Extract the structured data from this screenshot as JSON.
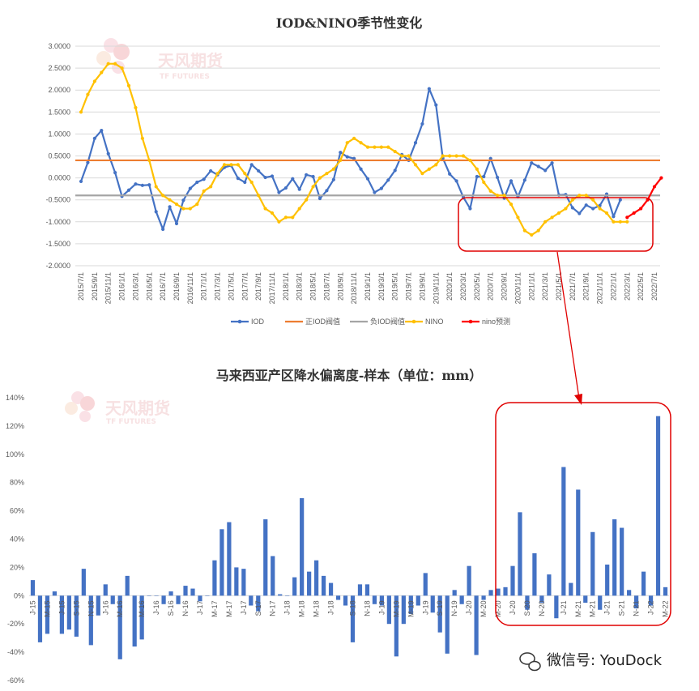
{
  "watermark": {
    "brand_cn": "天风期货",
    "brand_en": "TF FUTURES"
  },
  "wechat": {
    "label": "微信号: YouDock"
  },
  "chart_data": [
    {
      "type": "line",
      "title": "IOD&NINO季节性变化",
      "ylim": [
        -2.0,
        3.0
      ],
      "y_ticks": [
        "3.0000",
        "2.5000",
        "2.0000",
        "1.5000",
        "1.0000",
        "0.5000",
        "0.0000",
        "-0.5000",
        "-1.0000",
        "-1.5000",
        "-2.0000"
      ],
      "x_tick_labels": [
        "2015/7/1",
        "2015/9/1",
        "2015/11/1",
        "2016/1/1",
        "2016/3/1",
        "2016/5/1",
        "2016/7/1",
        "2016/9/1",
        "2016/11/1",
        "2017/1/1",
        "2017/3/1",
        "2017/5/1",
        "2017/7/1",
        "2017/9/1",
        "2017/11/1",
        "2018/1/1",
        "2018/3/1",
        "2018/5/1",
        "2018/7/1",
        "2018/9/1",
        "2018/11/1",
        "2019/1/1",
        "2019/3/1",
        "2019/5/1",
        "2019/7/1",
        "2019/9/1",
        "2019/11/1",
        "2020/1/1",
        "2020/3/1",
        "2020/5/1",
        "2020/7/1",
        "2020/9/1",
        "2020/11/1",
        "2021/1/1",
        "2021/3/1",
        "2021/5/1",
        "2021/7/1",
        "2021/9/1",
        "2021/11/1",
        "2022/1/1",
        "2022/3/1",
        "2022/5/1",
        "2022/7/1"
      ],
      "legend_position": "bottom",
      "series": [
        {
          "name": "IOD",
          "color": "#4472c4",
          "start_index": 0,
          "values": [
            -0.08,
            0.35,
            0.9,
            1.08,
            0.55,
            0.12,
            -0.42,
            -0.28,
            -0.14,
            -0.17,
            -0.16,
            -0.77,
            -1.17,
            -0.66,
            -1.04,
            -0.51,
            -0.24,
            -0.1,
            -0.03,
            0.16,
            0.07,
            0.24,
            0.28,
            -0.01,
            -0.1,
            0.3,
            0.16,
            0.01,
            0.04,
            -0.33,
            -0.23,
            -0.02,
            -0.26,
            0.07,
            0.03,
            -0.47,
            -0.29,
            -0.04,
            0.58,
            0.48,
            0.44,
            0.2,
            -0.02,
            -0.33,
            -0.24,
            -0.05,
            0.17,
            0.53,
            0.4,
            0.8,
            1.23,
            2.03,
            1.66,
            0.45,
            0.09,
            -0.07,
            -0.44,
            -0.7,
            0.03,
            0.03,
            0.44,
            0.01,
            -0.46,
            -0.07,
            -0.43,
            -0.05,
            0.34,
            0.26,
            0.17,
            0.34,
            -0.39,
            -0.38,
            -0.68,
            -0.81,
            -0.62,
            -0.7,
            -0.63,
            -0.37,
            -0.88,
            -0.5
          ]
        },
        {
          "name": "正IOD阀值",
          "color": "#ed7d31",
          "start_index": 0,
          "constant": 0.4
        },
        {
          "name": "负IOD阀值",
          "color": "#a5a5a5",
          "start_index": 0,
          "constant": -0.4
        },
        {
          "name": "NINO",
          "color": "#ffc000",
          "start_index": 0,
          "values": [
            1.5,
            1.9,
            2.2,
            2.4,
            2.6,
            2.6,
            2.5,
            2.1,
            1.6,
            0.9,
            0.4,
            -0.2,
            -0.4,
            -0.5,
            -0.6,
            -0.7,
            -0.7,
            -0.6,
            -0.3,
            -0.2,
            0.1,
            0.3,
            0.3,
            0.3,
            0.1,
            -0.1,
            -0.4,
            -0.7,
            -0.8,
            -1.0,
            -0.9,
            -0.9,
            -0.7,
            -0.5,
            -0.2,
            0.0,
            0.1,
            0.2,
            0.4,
            0.8,
            0.9,
            0.8,
            0.7,
            0.7,
            0.7,
            0.7,
            0.6,
            0.5,
            0.5,
            0.3,
            0.1,
            0.2,
            0.3,
            0.5,
            0.5,
            0.5,
            0.5,
            0.4,
            0.2,
            -0.1,
            -0.3,
            -0.4,
            -0.4,
            -0.6,
            -0.9,
            -1.2,
            -1.3,
            -1.2,
            -1.0,
            -0.9,
            -0.8,
            -0.7,
            -0.5,
            -0.4,
            -0.4,
            -0.5,
            -0.7,
            -0.8,
            -1.0,
            -1.0,
            -1.0
          ]
        },
        {
          "name": "nino预测",
          "color": "#ff0000",
          "start_index": 80,
          "values": [
            -0.9,
            -0.8,
            -0.7,
            -0.5,
            -0.2,
            0.0
          ]
        }
      ],
      "highlight": "red rounded box around 2020/3–2022/7 period"
    },
    {
      "type": "bar",
      "title": "马来西亚产区降水偏离度-样本（单位：mm）",
      "ylim": [
        -0.6,
        1.4
      ],
      "y_ticks": [
        "140%",
        "120%",
        "100%",
        "80%",
        "60%",
        "40%",
        "20%",
        "0%",
        "-20%",
        "-40%",
        "-60%"
      ],
      "color": "#4472c4",
      "category_labels": [
        "J-15",
        "M-15",
        "J-15",
        "S-15",
        "N-15",
        "J-16",
        "M-16",
        "M-16",
        "J-16",
        "S-16",
        "N-16",
        "J-17",
        "M-17",
        "M-17",
        "J-17",
        "S-17",
        "N-17",
        "J-18",
        "M-18",
        "M-18",
        "J-18",
        "S-18",
        "N-18",
        "J-19",
        "M-19",
        "M-19",
        "J-19",
        "S-19",
        "N-19",
        "J-20",
        "M-20",
        "M-20",
        "J-20",
        "S-20",
        "N-20",
        "J-21",
        "M-21",
        "M-21",
        "J-21",
        "S-21",
        "N-21",
        "J-22",
        "M-22"
      ],
      "values": [
        0.11,
        -0.33,
        -0.27,
        0.03,
        -0.27,
        -0.24,
        -0.29,
        0.19,
        -0.35,
        -0.14,
        0.08,
        -0.06,
        -0.45,
        0.14,
        -0.36,
        -0.31,
        0.0,
        0.0,
        -0.06,
        0.03,
        -0.06,
        0.07,
        0.05,
        -0.04,
        0.0,
        0.25,
        0.47,
        0.52,
        0.2,
        0.19,
        -0.07,
        -0.11,
        0.54,
        0.28,
        0.01,
        0.0,
        0.13,
        0.69,
        0.17,
        0.25,
        0.14,
        0.09,
        -0.03,
        -0.07,
        -0.33,
        0.08,
        0.08,
        -0.06,
        -0.07,
        -0.2,
        -0.43,
        -0.2,
        -0.13,
        -0.07,
        0.16,
        -0.12,
        -0.26,
        -0.41,
        0.04,
        -0.06,
        0.21,
        -0.42,
        -0.03,
        0.04,
        0.05,
        0.06,
        0.21,
        0.59,
        -0.1,
        0.3,
        -0.05,
        0.15,
        -0.16,
        0.91,
        0.09,
        0.75,
        -0.05,
        0.45,
        -0.1,
        0.22,
        0.54,
        0.48,
        0.04,
        -0.09,
        0.17,
        -0.07,
        1.27,
        0.06
      ],
      "highlight": "red rounded box around 2020–2022 bars"
    }
  ]
}
